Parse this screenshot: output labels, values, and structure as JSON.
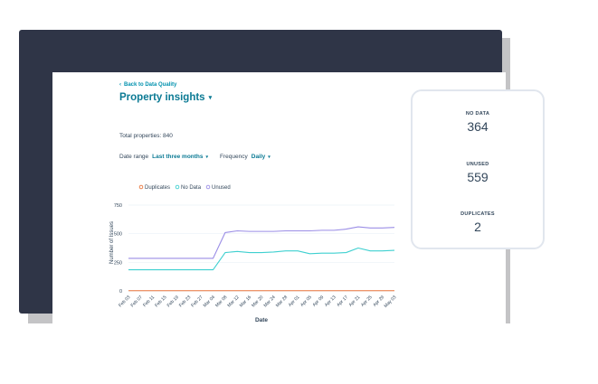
{
  "nav": {
    "back_label": "Back to Data Quality"
  },
  "page": {
    "title": "Property insights"
  },
  "summary": {
    "total_properties": "Total properties: 840"
  },
  "filters": {
    "date_range_label": "Date range",
    "date_range_value": "Last three months",
    "frequency_label": "Frequency",
    "frequency_value": "Daily"
  },
  "stats": [
    {
      "label": "NO DATA",
      "value": "364"
    },
    {
      "label": "UNUSED",
      "value": "559"
    },
    {
      "label": "DUPLICATES",
      "value": "2"
    }
  ],
  "colors": {
    "accent": "#0091ae",
    "frame": "#2f3547",
    "duplicates": "#e8743b",
    "no_data": "#3fd0d0",
    "unused": "#9b8ee6"
  },
  "chart_data": {
    "type": "line",
    "xlabel": "Date",
    "ylabel": "Number of Issues",
    "ylim": [
      0,
      750
    ],
    "yticks": [
      "0",
      "250",
      "500",
      "750"
    ],
    "x": [
      "Feb 03",
      "Feb 07",
      "Feb 11",
      "Feb 15",
      "Feb 19",
      "Feb 23",
      "Feb 27",
      "Mar 04",
      "Mar 08",
      "Mar 12",
      "Mar 16",
      "Mar 20",
      "Mar 24",
      "Mar 28",
      "Apr 01",
      "Apr 05",
      "Apr 09",
      "Apr 13",
      "Apr 17",
      "Apr 21",
      "Apr 25",
      "Apr 29",
      "May 03"
    ],
    "series": [
      {
        "name": "Duplicates",
        "color": "#e8743b",
        "values": [
          2,
          2,
          2,
          2,
          2,
          2,
          2,
          2,
          2,
          2,
          2,
          2,
          2,
          2,
          2,
          2,
          2,
          2,
          2,
          2,
          2,
          2,
          2
        ]
      },
      {
        "name": "No Data",
        "color": "#3fd0d0",
        "values": [
          185,
          185,
          185,
          185,
          185,
          185,
          185,
          185,
          335,
          345,
          335,
          335,
          340,
          350,
          350,
          325,
          330,
          330,
          335,
          375,
          350,
          350,
          355
        ]
      },
      {
        "name": "Unused",
        "color": "#9b8ee6",
        "values": [
          285,
          285,
          285,
          285,
          285,
          285,
          285,
          285,
          510,
          525,
          520,
          520,
          520,
          525,
          525,
          525,
          530,
          530,
          540,
          560,
          550,
          550,
          555
        ]
      }
    ],
    "legend_position": "top-left",
    "grid": true
  }
}
